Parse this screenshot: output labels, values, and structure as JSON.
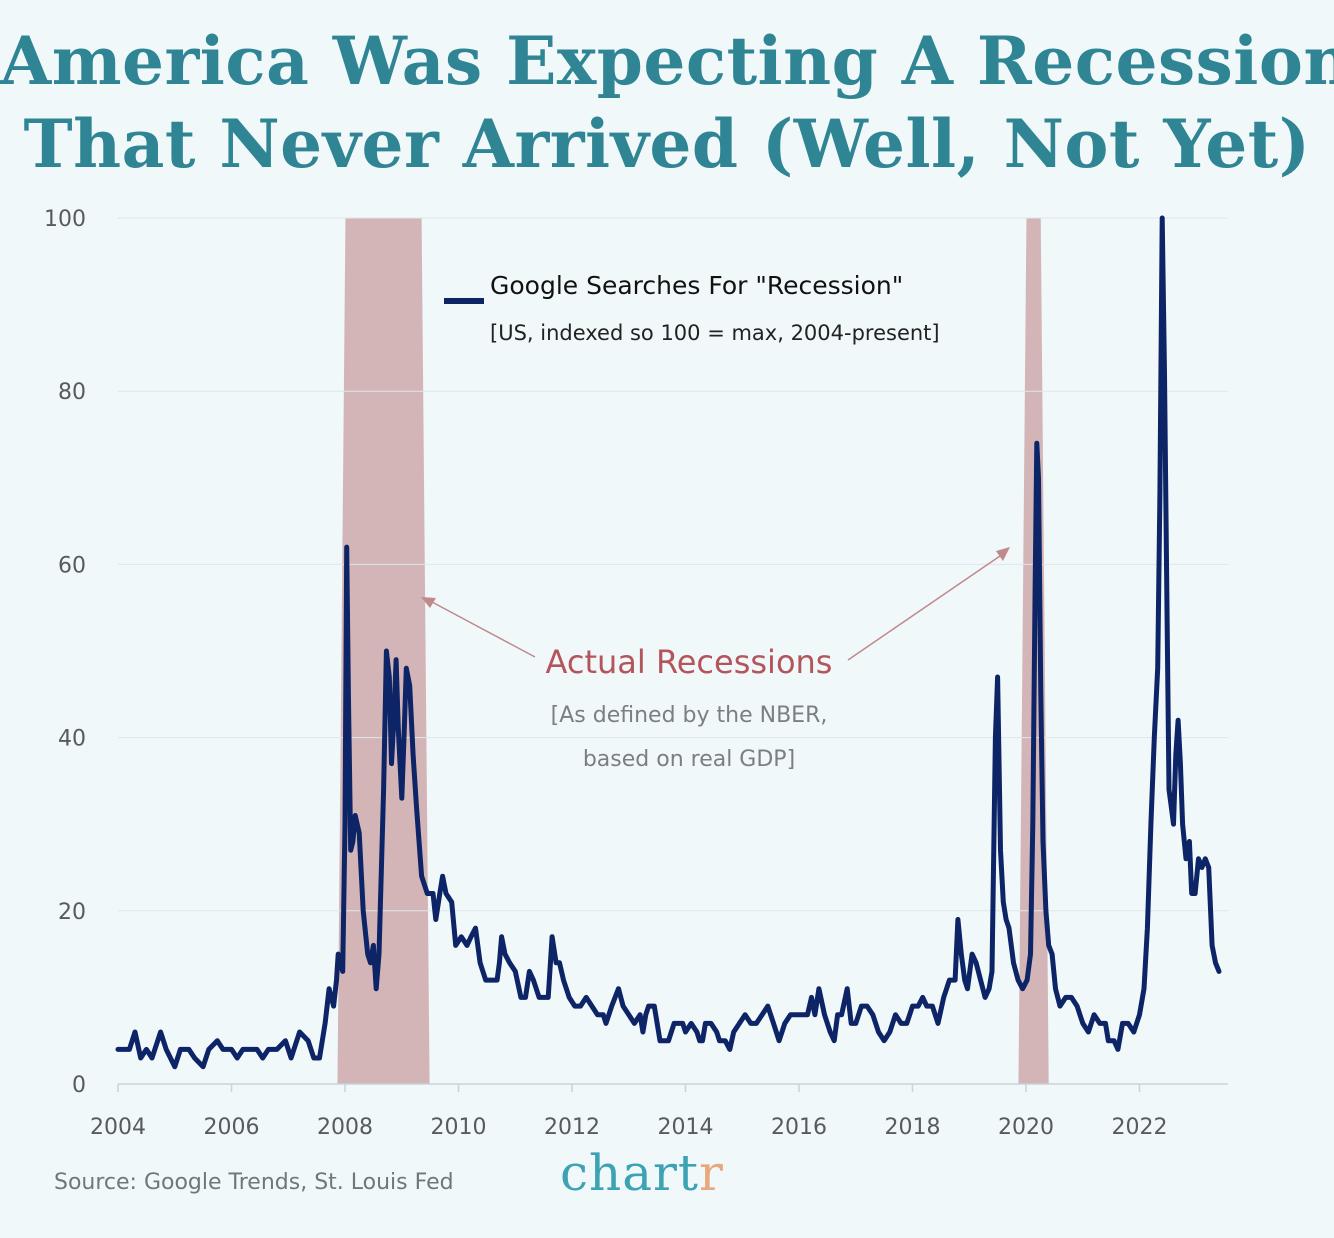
{
  "header": {
    "title_line1": "America Was Expecting A Recession",
    "title_line2": "That Never Arrived (Well, Not Yet)"
  },
  "footer": {
    "source": "Source: Google Trends, St. Louis Fed",
    "logo_main": "chart",
    "logo_accent": "r"
  },
  "colors": {
    "background": "#f0f8fa",
    "title": "#2f8594",
    "series": "#0d2466",
    "recession": "#c8989a",
    "annotation": "#b3555a",
    "note": "#7a7f85",
    "logo": "#3ba3b3",
    "logo_accent": "#e9a77e"
  },
  "chart_data": {
    "type": "line",
    "title": "America Was Expecting A Recession That Never Arrived (Well, Not Yet)",
    "xlabel": "",
    "ylabel": "",
    "xlim": [
      2004.0,
      2023.6
    ],
    "ylim": [
      0,
      100
    ],
    "x_ticks": [
      "2004",
      "2006",
      "2008",
      "2010",
      "2012",
      "2014",
      "2016",
      "2018",
      "2020",
      "2022"
    ],
    "y_ticks": [
      "0",
      "20",
      "40",
      "60",
      "80",
      "100"
    ],
    "grid": "horizontal",
    "legend": {
      "position": "top-center",
      "label": "Google Searches For \"Recession\"",
      "sublabel": "[US, indexed so 100 = max, 2004-present]"
    },
    "recession_periods": [
      [
        2007.92,
        2009.42
      ],
      [
        2019.92,
        2020.33
      ]
    ],
    "annotation": {
      "label": "Actual Recessions",
      "note_line1": "[As defined by the NBER,",
      "note_line2": "based on real GDP]"
    },
    "series": [
      {
        "name": "Google Searches For \"Recession\"",
        "points": [
          [
            2004.0,
            4
          ],
          [
            2004.1,
            4
          ],
          [
            2004.2,
            4
          ],
          [
            2004.3,
            6
          ],
          [
            2004.4,
            3
          ],
          [
            2004.5,
            4
          ],
          [
            2004.6,
            3
          ],
          [
            2004.75,
            6
          ],
          [
            2004.85,
            4
          ],
          [
            2005.0,
            2
          ],
          [
            2005.1,
            4
          ],
          [
            2005.25,
            4
          ],
          [
            2005.35,
            3
          ],
          [
            2005.5,
            2
          ],
          [
            2005.6,
            4
          ],
          [
            2005.75,
            5
          ],
          [
            2005.85,
            4
          ],
          [
            2006.0,
            4
          ],
          [
            2006.1,
            3
          ],
          [
            2006.2,
            4
          ],
          [
            2006.35,
            4
          ],
          [
            2006.45,
            4
          ],
          [
            2006.55,
            3
          ],
          [
            2006.65,
            4
          ],
          [
            2006.8,
            4
          ],
          [
            2006.95,
            5
          ],
          [
            2007.05,
            3
          ],
          [
            2007.2,
            6
          ],
          [
            2007.35,
            5
          ],
          [
            2007.45,
            3
          ],
          [
            2007.55,
            3
          ],
          [
            2007.65,
            7
          ],
          [
            2007.72,
            11
          ],
          [
            2007.8,
            9
          ],
          [
            2007.85,
            12
          ],
          [
            2007.88,
            15
          ],
          [
            2007.92,
            14
          ],
          [
            2007.96,
            13
          ],
          [
            2008.0,
            30
          ],
          [
            2008.03,
            62
          ],
          [
            2008.06,
            45
          ],
          [
            2008.1,
            27
          ],
          [
            2008.14,
            28
          ],
          [
            2008.18,
            31
          ],
          [
            2008.25,
            29
          ],
          [
            2008.32,
            20
          ],
          [
            2008.4,
            15
          ],
          [
            2008.45,
            14
          ],
          [
            2008.5,
            16
          ],
          [
            2008.55,
            11
          ],
          [
            2008.6,
            15
          ],
          [
            2008.68,
            34
          ],
          [
            2008.73,
            50
          ],
          [
            2008.78,
            47
          ],
          [
            2008.82,
            37
          ],
          [
            2008.86,
            42
          ],
          [
            2008.9,
            49
          ],
          [
            2008.94,
            41
          ],
          [
            2009.0,
            33
          ],
          [
            2009.04,
            40
          ],
          [
            2009.08,
            48
          ],
          [
            2009.14,
            46
          ],
          [
            2009.2,
            38
          ],
          [
            2009.26,
            32
          ],
          [
            2009.35,
            24
          ],
          [
            2009.45,
            22
          ],
          [
            2009.55,
            22
          ],
          [
            2009.6,
            19
          ],
          [
            2009.67,
            22
          ],
          [
            2009.72,
            24
          ],
          [
            2009.78,
            22
          ],
          [
            2009.88,
            21
          ],
          [
            2009.95,
            16
          ],
          [
            2010.05,
            17
          ],
          [
            2010.15,
            16
          ],
          [
            2010.22,
            17
          ],
          [
            2010.3,
            18
          ],
          [
            2010.38,
            14
          ],
          [
            2010.48,
            12
          ],
          [
            2010.6,
            12
          ],
          [
            2010.68,
            12
          ],
          [
            2010.72,
            14
          ],
          [
            2010.76,
            17
          ],
          [
            2010.82,
            15
          ],
          [
            2010.9,
            14
          ],
          [
            2011.0,
            13
          ],
          [
            2011.1,
            10
          ],
          [
            2011.18,
            10
          ],
          [
            2011.25,
            13
          ],
          [
            2011.32,
            12
          ],
          [
            2011.42,
            10
          ],
          [
            2011.5,
            10
          ],
          [
            2011.58,
            10
          ],
          [
            2011.65,
            17
          ],
          [
            2011.72,
            14
          ],
          [
            2011.78,
            14
          ],
          [
            2011.85,
            12
          ],
          [
            2011.95,
            10
          ],
          [
            2012.05,
            9
          ],
          [
            2012.15,
            9
          ],
          [
            2012.25,
            10
          ],
          [
            2012.35,
            9
          ],
          [
            2012.45,
            8
          ],
          [
            2012.55,
            8
          ],
          [
            2012.6,
            7
          ],
          [
            2012.7,
            9
          ],
          [
            2012.82,
            11
          ],
          [
            2012.9,
            9
          ],
          [
            2013.0,
            8
          ],
          [
            2013.1,
            7
          ],
          [
            2013.2,
            8
          ],
          [
            2013.25,
            6
          ],
          [
            2013.3,
            8
          ],
          [
            2013.35,
            9
          ],
          [
            2013.45,
            9
          ],
          [
            2013.55,
            5
          ],
          [
            2013.7,
            5
          ],
          [
            2013.8,
            7
          ],
          [
            2013.9,
            7
          ],
          [
            2013.95,
            7
          ],
          [
            2014.0,
            6
          ],
          [
            2014.1,
            7
          ],
          [
            2014.2,
            6
          ],
          [
            2014.25,
            5
          ],
          [
            2014.3,
            5
          ],
          [
            2014.35,
            7
          ],
          [
            2014.45,
            7
          ],
          [
            2014.55,
            6
          ],
          [
            2014.6,
            5
          ],
          [
            2014.7,
            5
          ],
          [
            2014.78,
            4
          ],
          [
            2014.85,
            6
          ],
          [
            2014.95,
            7
          ],
          [
            2015.05,
            8
          ],
          [
            2015.15,
            7
          ],
          [
            2015.25,
            7
          ],
          [
            2015.35,
            8
          ],
          [
            2015.45,
            9
          ],
          [
            2015.55,
            7
          ],
          [
            2015.65,
            5
          ],
          [
            2015.75,
            7
          ],
          [
            2015.85,
            8
          ],
          [
            2015.95,
            8
          ],
          [
            2016.05,
            8
          ],
          [
            2016.15,
            8
          ],
          [
            2016.22,
            10
          ],
          [
            2016.28,
            8
          ],
          [
            2016.35,
            11
          ],
          [
            2016.45,
            8
          ],
          [
            2016.55,
            6
          ],
          [
            2016.62,
            5
          ],
          [
            2016.68,
            8
          ],
          [
            2016.75,
            8
          ],
          [
            2016.85,
            11
          ],
          [
            2016.92,
            7
          ],
          [
            2017.0,
            7
          ],
          [
            2017.1,
            9
          ],
          [
            2017.2,
            9
          ],
          [
            2017.3,
            8
          ],
          [
            2017.4,
            6
          ],
          [
            2017.5,
            5
          ],
          [
            2017.6,
            6
          ],
          [
            2017.7,
            8
          ],
          [
            2017.8,
            7
          ],
          [
            2017.9,
            7
          ],
          [
            2018.0,
            9
          ],
          [
            2018.1,
            9
          ],
          [
            2018.18,
            10
          ],
          [
            2018.25,
            9
          ],
          [
            2018.35,
            9
          ],
          [
            2018.45,
            7
          ],
          [
            2018.55,
            10
          ],
          [
            2018.65,
            12
          ],
          [
            2018.75,
            12
          ],
          [
            2018.8,
            19
          ],
          [
            2018.86,
            15
          ],
          [
            2018.92,
            12
          ],
          [
            2018.97,
            11
          ],
          [
            2019.05,
            15
          ],
          [
            2019.12,
            14
          ],
          [
            2019.2,
            12
          ],
          [
            2019.28,
            10
          ],
          [
            2019.35,
            11
          ],
          [
            2019.4,
            13
          ],
          [
            2019.46,
            40
          ],
          [
            2019.5,
            47
          ],
          [
            2019.55,
            27
          ],
          [
            2019.6,
            21
          ],
          [
            2019.65,
            19
          ],
          [
            2019.7,
            18
          ],
          [
            2019.78,
            14
          ],
          [
            2019.86,
            12
          ],
          [
            2019.94,
            11
          ],
          [
            2020.02,
            12
          ],
          [
            2020.08,
            15
          ],
          [
            2020.12,
            30
          ],
          [
            2020.16,
            57
          ],
          [
            2020.19,
            74
          ],
          [
            2020.22,
            70
          ],
          [
            2020.26,
            45
          ],
          [
            2020.3,
            28
          ],
          [
            2020.35,
            20
          ],
          [
            2020.4,
            16
          ],
          [
            2020.46,
            15
          ],
          [
            2020.52,
            11
          ],
          [
            2020.6,
            9
          ],
          [
            2020.7,
            10
          ],
          [
            2020.8,
            10
          ],
          [
            2020.9,
            9
          ],
          [
            2021.0,
            7
          ],
          [
            2021.1,
            6
          ],
          [
            2021.2,
            8
          ],
          [
            2021.3,
            7
          ],
          [
            2021.4,
            7
          ],
          [
            2021.45,
            5
          ],
          [
            2021.55,
            5
          ],
          [
            2021.62,
            4
          ],
          [
            2021.7,
            7
          ],
          [
            2021.8,
            7
          ],
          [
            2021.9,
            6
          ],
          [
            2022.0,
            8
          ],
          [
            2022.08,
            11
          ],
          [
            2022.14,
            18
          ],
          [
            2022.2,
            30
          ],
          [
            2022.26,
            40
          ],
          [
            2022.32,
            48
          ],
          [
            2022.36,
            68
          ],
          [
            2022.4,
            100
          ],
          [
            2022.44,
            82
          ],
          [
            2022.48,
            58
          ],
          [
            2022.52,
            34
          ],
          [
            2022.56,
            32
          ],
          [
            2022.6,
            30
          ],
          [
            2022.64,
            38
          ],
          [
            2022.68,
            42
          ],
          [
            2022.72,
            37
          ],
          [
            2022.76,
            30
          ],
          [
            2022.82,
            26
          ],
          [
            2022.88,
            28
          ],
          [
            2022.92,
            22
          ],
          [
            2022.98,
            22
          ],
          [
            2023.04,
            26
          ],
          [
            2023.1,
            25
          ],
          [
            2023.16,
            26
          ],
          [
            2023.22,
            25
          ],
          [
            2023.28,
            16
          ],
          [
            2023.34,
            14
          ],
          [
            2023.4,
            13
          ]
        ]
      }
    ]
  }
}
